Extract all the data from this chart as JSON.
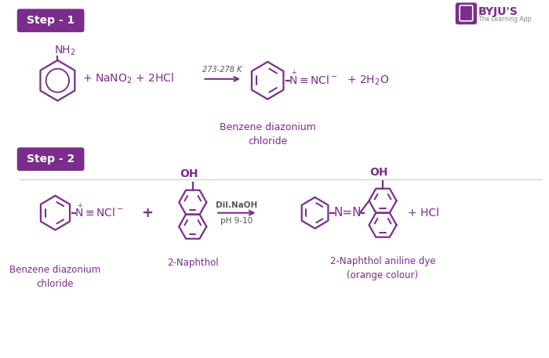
{
  "bg_color": "#ffffff",
  "purple": "#7B2D8B",
  "step_bg": "#7B2D8B",
  "step1_label": "Step - 1",
  "step2_label": "Step - 2",
  "bdc_label": "Benzene diazonium\nchloride",
  "bdc_label2": "Benzene diazonium\nchloride",
  "naphthol_label": "2-Naphthol",
  "product_label": "2-Naphthol aniline dye\n(orange colour)",
  "byju_purple": "#7B2D8B"
}
